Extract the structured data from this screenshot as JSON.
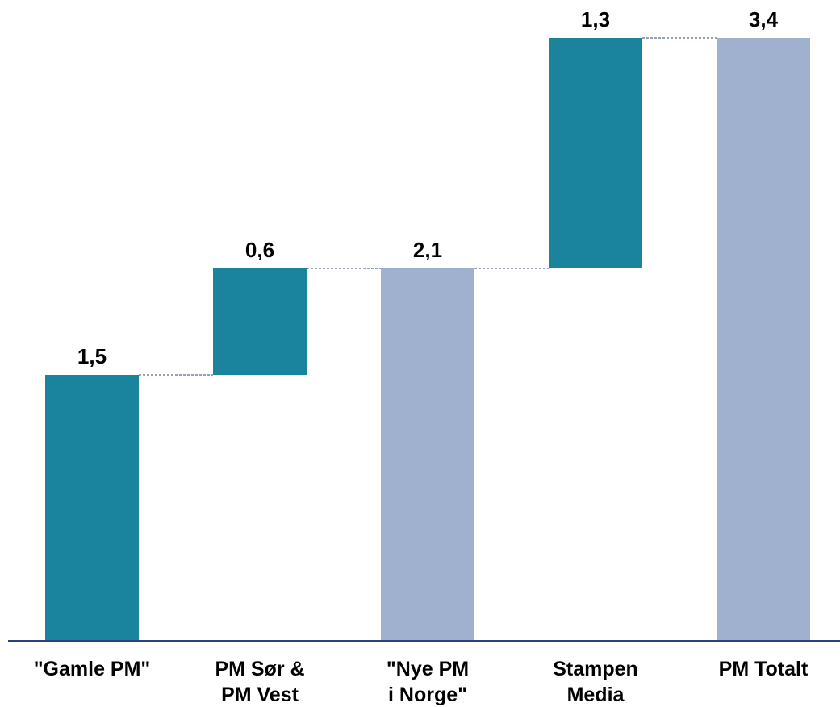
{
  "chart_data": {
    "type": "bar",
    "subtype": "waterfall",
    "title": "",
    "xlabel": "",
    "ylabel": "",
    "ylim": [
      0,
      3.4
    ],
    "grid": false,
    "legend": "none",
    "categories": [
      [
        "\"Gamle PM\""
      ],
      [
        "PM Sør &",
        "PM Vest"
      ],
      [
        "\"Nye PM",
        "i Norge\""
      ],
      [
        "Stampen",
        "Media"
      ],
      [
        "PM Totalt"
      ]
    ],
    "bars": [
      {
        "base": 0.0,
        "value": 1.5,
        "label": "1,5",
        "kind": "increment"
      },
      {
        "base": 1.5,
        "value": 0.6,
        "label": "0,6",
        "kind": "increment"
      },
      {
        "base": 0.0,
        "value": 2.1,
        "label": "2,1",
        "kind": "total"
      },
      {
        "base": 2.1,
        "value": 1.3,
        "label": "1,3",
        "kind": "increment"
      },
      {
        "base": 0.0,
        "value": 3.4,
        "label": "3,4",
        "kind": "total"
      }
    ],
    "colors": {
      "increment": "#1a839e",
      "total": "#9fb1cf",
      "axis": "#2e3f7f",
      "connector": "#2e3f7f"
    }
  }
}
